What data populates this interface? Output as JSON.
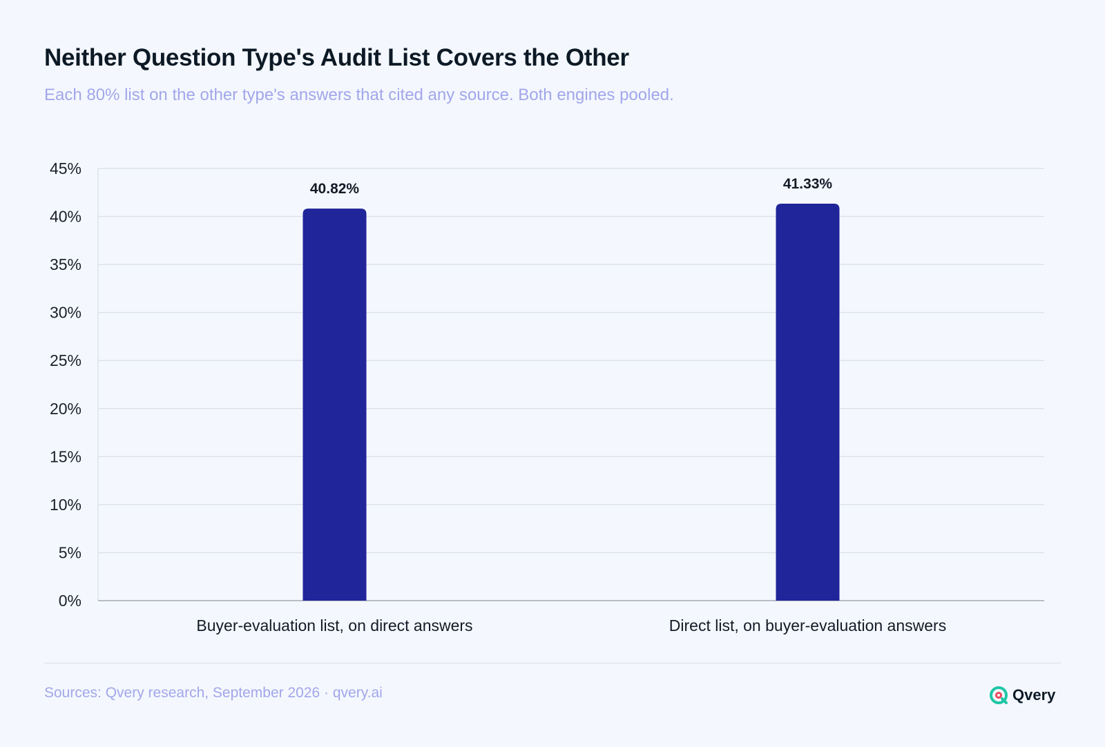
{
  "header": {
    "title": "Neither Question Type's Audit List Covers the Other",
    "subtitle": "Each 80% list on the other type's answers that cited any source. Both engines pooled."
  },
  "footer": {
    "source": "Sources: Qvery research, September 2026 · qvery.ai",
    "brand": "Qvery",
    "brand_icon": "qvery-logo-icon"
  },
  "colors": {
    "background": "#f4f8fe",
    "bar": "#20259a",
    "title": "#0d1a26",
    "subtitle": "#a2a6ea",
    "grid": "#dde1ea",
    "axis": "#b7bcc6",
    "brand_accent": "#1fc6a6",
    "brand_dot": "#f0445a"
  },
  "chart_data": {
    "type": "bar",
    "categories": [
      "Buyer-evaluation list, on direct answers",
      "Direct list, on buyer-evaluation answers"
    ],
    "values": [
      40.82,
      41.33
    ],
    "data_labels": [
      "40.82%",
      "41.33%"
    ],
    "ylim": [
      0,
      45
    ],
    "yticks": [
      0,
      5,
      10,
      15,
      20,
      25,
      30,
      35,
      40,
      45
    ],
    "ytick_labels": [
      "0%",
      "5%",
      "10%",
      "15%",
      "20%",
      "25%",
      "30%",
      "35%",
      "40%",
      "45%"
    ],
    "xlabel": "",
    "ylabel": "",
    "grid": true,
    "legend": "none"
  }
}
